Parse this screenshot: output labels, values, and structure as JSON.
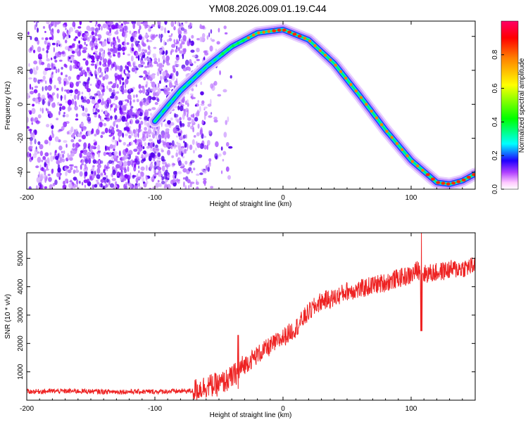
{
  "title": "YM08.2026.009.01.19.C44",
  "chart_data": [
    {
      "type": "heatmap",
      "name": "spectrogram",
      "xlabel": "Height of straight line (km)",
      "ylabel": "Frequency (Hz)",
      "xlim": [
        -200,
        150
      ],
      "ylim": [
        -50,
        49
      ],
      "xticks": [
        -200,
        -100,
        0,
        100
      ],
      "yticks": [
        -40,
        -20,
        0,
        20,
        40
      ],
      "colorbar": {
        "label": "Normalized spectral amplitude",
        "range": [
          0,
          1
        ],
        "ticks": [
          0.0,
          0.2,
          0.4,
          0.6,
          0.8
        ],
        "colors": [
          "#ffffff",
          "#ff88ff",
          "#a000ff",
          "#0000ff",
          "#00ffff",
          "#00ff00",
          "#ffff00",
          "#ff8000",
          "#ff0000",
          "#ff0066"
        ]
      },
      "signal_track": {
        "x": [
          -100,
          -80,
          -60,
          -40,
          -20,
          0,
          20,
          40,
          60,
          80,
          100,
          120,
          130,
          140,
          150
        ],
        "frequency": [
          -10,
          8,
          22,
          34,
          42,
          44,
          38,
          24,
          5,
          -15,
          -33,
          -46,
          -47,
          -45,
          -41
        ]
      }
    },
    {
      "type": "line",
      "name": "snr",
      "xlabel": "Height of straight line (km)",
      "ylabel": "SNR (10 * v/v)",
      "xlim": [
        -200,
        150
      ],
      "ylim": [
        0,
        5900
      ],
      "xticks": [
        -200,
        -100,
        0,
        100
      ],
      "yticks": [
        1000,
        2000,
        3000,
        4000,
        5000
      ],
      "color": "#ee2222",
      "series": [
        {
          "name": "SNR",
          "x": [
            -200,
            -180,
            -160,
            -140,
            -120,
            -100,
            -80,
            -70,
            -60,
            -50,
            -40,
            -30,
            -20,
            -10,
            0,
            10,
            20,
            30,
            40,
            50,
            60,
            70,
            80,
            90,
            100,
            105,
            108,
            110,
            120,
            130,
            140,
            150
          ],
          "values": [
            300,
            320,
            320,
            300,
            300,
            300,
            320,
            330,
            500,
            550,
            800,
            1250,
            1600,
            1900,
            2200,
            2550,
            3100,
            3500,
            3600,
            3850,
            3900,
            4050,
            4150,
            4300,
            4400,
            4600,
            4500,
            4450,
            4500,
            4600,
            4650,
            4750
          ]
        }
      ]
    }
  ]
}
